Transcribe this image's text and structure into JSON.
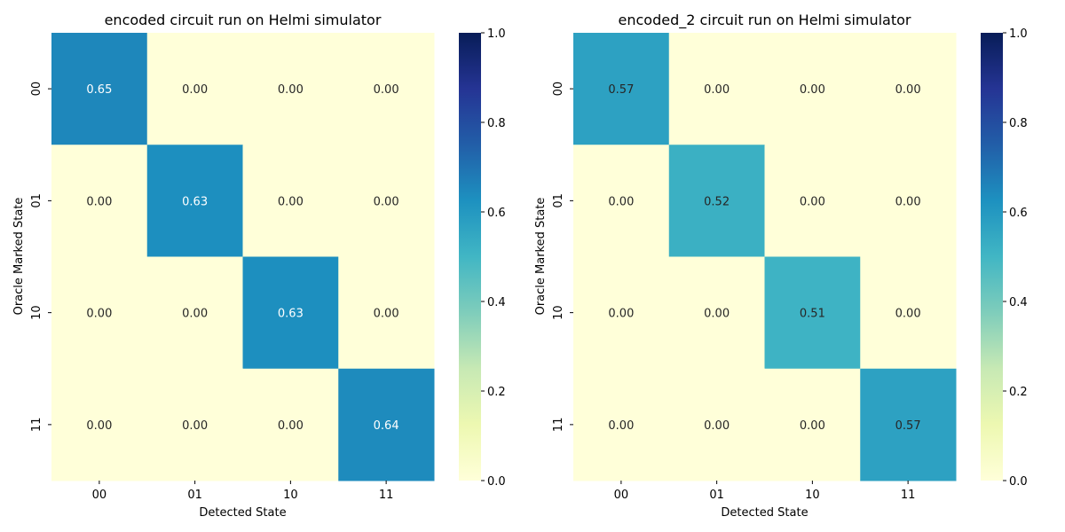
{
  "chart_data": [
    {
      "type": "heatmap",
      "title": "encoded circuit run on Helmi simulator",
      "xlabel": "Detected State",
      "ylabel": "Oracle Marked State",
      "x_categories": [
        "00",
        "01",
        "10",
        "11"
      ],
      "y_categories": [
        "00",
        "01",
        "10",
        "11"
      ],
      "values": [
        [
          0.65,
          0.0,
          0.0,
          0.0
        ],
        [
          0.0,
          0.63,
          0.0,
          0.0
        ],
        [
          0.0,
          0.0,
          0.63,
          0.0
        ],
        [
          0.0,
          0.0,
          0.0,
          0.64
        ]
      ],
      "value_format": "0.00",
      "colorbar": {
        "range": [
          0.0,
          1.0
        ],
        "ticks": [
          "0.0",
          "0.2",
          "0.4",
          "0.6",
          "0.8",
          "1.0"
        ],
        "colormap": "YlGnBu"
      }
    },
    {
      "type": "heatmap",
      "title": "encoded_2 circuit run on Helmi simulator",
      "xlabel": "Detected State",
      "ylabel": "Oracle Marked State",
      "x_categories": [
        "00",
        "01",
        "10",
        "11"
      ],
      "y_categories": [
        "00",
        "01",
        "10",
        "11"
      ],
      "values": [
        [
          0.57,
          0.0,
          0.0,
          0.0
        ],
        [
          0.0,
          0.52,
          0.0,
          0.0
        ],
        [
          0.0,
          0.0,
          0.51,
          0.0
        ],
        [
          0.0,
          0.0,
          0.0,
          0.57
        ]
      ],
      "value_format": "0.00",
      "colorbar": {
        "range": [
          0.0,
          1.0
        ],
        "ticks": [
          "0.0",
          "0.2",
          "0.4",
          "0.6",
          "0.8",
          "1.0"
        ],
        "colormap": "YlGnBu"
      }
    }
  ]
}
